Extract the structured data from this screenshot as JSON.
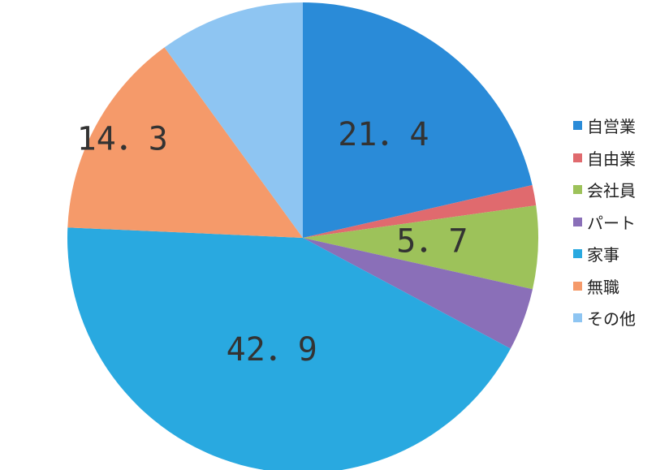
{
  "chart_data": {
    "type": "pie",
    "title": "",
    "slices": [
      {
        "label": "自営業",
        "value": 21.4,
        "data_label": "21．4",
        "color": "#2a8bd8"
      },
      {
        "label": "自由業",
        "value": 1.4,
        "data_label": "",
        "color": "#e06a6e"
      },
      {
        "label": "会社員",
        "value": 5.7,
        "data_label": "5．7",
        "color": "#9dc25a"
      },
      {
        "label": "パート",
        "value": 4.3,
        "data_label": "",
        "color": "#8a6fb8"
      },
      {
        "label": "家事",
        "value": 42.9,
        "data_label": "42．9",
        "color": "#29a9e0"
      },
      {
        "label": "無職",
        "value": 14.3,
        "data_label": "14．3",
        "color": "#f59a6a"
      },
      {
        "label": "その他",
        "value": 10.0,
        "data_label": "",
        "color": "#8ec5f2"
      }
    ],
    "legend": "right"
  }
}
